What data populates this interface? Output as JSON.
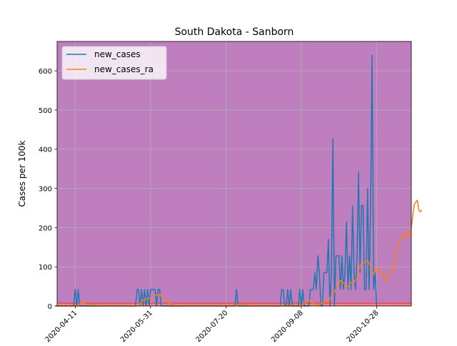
{
  "chart_data": {
    "type": "line",
    "title": "South Dakota - Sanborn",
    "xlabel": "",
    "ylabel": "Cases per 100k",
    "x_start": "2020-03-29",
    "x_end": "2020-11-17",
    "xlim": [
      "2020-03-30",
      "2020-11-20"
    ],
    "ylim": [
      0,
      675
    ],
    "x_ticks": [
      "2020-04-11",
      "2020-05-31",
      "2020-07-20",
      "2020-09-08",
      "2020-10-28"
    ],
    "x_tick_labels": [
      "2020-04-11",
      "2020-05-31",
      "2020-07-20",
      "2020-09-08",
      "2020-10-28"
    ],
    "y_ticks": [
      0,
      100,
      200,
      300,
      400,
      500,
      600
    ],
    "y_tick_labels": [
      "0",
      "100",
      "200",
      "300",
      "400",
      "500",
      "600"
    ],
    "grid": true,
    "legend_position": "upper-left",
    "background_color": "#bf7fbf",
    "baseline_band": {
      "low": 0,
      "high": 7,
      "fill_color": "#ff8080",
      "line_color": "#e03030"
    },
    "series": [
      {
        "name": "new_cases",
        "color": "#1f77b4",
        "values": [
          0,
          0,
          0,
          0,
          0,
          0,
          0,
          0,
          0,
          0,
          0,
          0,
          0,
          42,
          0,
          42,
          0,
          0,
          0,
          0,
          0,
          0,
          0,
          0,
          0,
          0,
          0,
          0,
          0,
          0,
          0,
          0,
          0,
          0,
          0,
          0,
          0,
          0,
          0,
          0,
          0,
          0,
          0,
          0,
          0,
          0,
          0,
          0,
          0,
          0,
          0,
          0,
          0,
          0,
          42,
          42,
          0,
          42,
          0,
          42,
          0,
          42,
          0,
          42,
          42,
          42,
          42,
          0,
          42,
          42,
          0,
          0,
          0,
          0,
          0,
          0,
          0,
          0,
          0,
          0,
          0,
          0,
          0,
          0,
          0,
          0,
          0,
          0,
          0,
          0,
          0,
          0,
          0,
          0,
          0,
          0,
          0,
          0,
          0,
          0,
          0,
          0,
          0,
          0,
          0,
          0,
          0,
          0,
          0,
          0,
          0,
          0,
          0,
          0,
          0,
          0,
          0,
          0,
          0,
          0,
          42,
          0,
          0,
          0,
          0,
          0,
          0,
          0,
          0,
          0,
          0,
          0,
          0,
          0,
          0,
          0,
          0,
          0,
          0,
          0,
          0,
          0,
          0,
          0,
          0,
          0,
          0,
          0,
          0,
          0,
          42,
          42,
          0,
          0,
          42,
          0,
          42,
          0,
          0,
          0,
          0,
          0,
          42,
          0,
          42,
          0,
          0,
          0,
          0,
          42,
          42,
          42,
          85,
          42,
          128,
          85,
          0,
          0,
          85,
          85,
          85,
          170,
          0,
          85,
          427,
          0,
          128,
          128,
          128,
          42,
          128,
          42,
          85,
          214,
          42,
          128,
          42,
          256,
          85,
          42,
          128,
          342,
          85,
          256,
          256,
          42,
          42,
          300,
          42,
          256,
          640,
          42,
          85,
          0
        ]
      },
      {
        "name": "new_cases_ra",
        "color": "#ff7f0e",
        "values": [
          0,
          0,
          0,
          0,
          0,
          0,
          0,
          0,
          0,
          0,
          0,
          0,
          0,
          0,
          0,
          0,
          5,
          7,
          10,
          7,
          5,
          5,
          4,
          4,
          3,
          3,
          2,
          2,
          1,
          1,
          0,
          0,
          0,
          0,
          0,
          0,
          0,
          0,
          0,
          0,
          0,
          0,
          0,
          0,
          0,
          0,
          0,
          0,
          0,
          0,
          0,
          0,
          0,
          0,
          0,
          0,
          5,
          10,
          15,
          17,
          18,
          19,
          20,
          20,
          22,
          25,
          28,
          27,
          28,
          29,
          26,
          24,
          22,
          18,
          14,
          10,
          6,
          4,
          2,
          0,
          0,
          0,
          0,
          0,
          0,
          0,
          0,
          0,
          0,
          0,
          0,
          0,
          0,
          0,
          0,
          0,
          0,
          0,
          0,
          0,
          0,
          0,
          0,
          0,
          0,
          0,
          0,
          0,
          0,
          0,
          0,
          0,
          0,
          0,
          0,
          0,
          0,
          0,
          0,
          0,
          0,
          4,
          5,
          5,
          5,
          5,
          4,
          3,
          2,
          0,
          0,
          0,
          0,
          0,
          0,
          0,
          0,
          0,
          0,
          0,
          0,
          0,
          0,
          0,
          0,
          0,
          0,
          0,
          0,
          0,
          0,
          0,
          0,
          0,
          0,
          0,
          0,
          0,
          0,
          0,
          0,
          0,
          0,
          0,
          5,
          8,
          10,
          15,
          15,
          12,
          10,
          6,
          6,
          4,
          2,
          2,
          6,
          8,
          10,
          10,
          10,
          8,
          20,
          24,
          32,
          35,
          45,
          50,
          60,
          65,
          60,
          60,
          55,
          50,
          50,
          55,
          60,
          60,
          60,
          65,
          70,
          90,
          100,
          110,
          110,
          112,
          115,
          115,
          110,
          100,
          90,
          80,
          90,
          95,
          95,
          90,
          85,
          80,
          75,
          65,
          65,
          85,
          88,
          85,
          90,
          100,
          150,
          160,
          165,
          175,
          180,
          175,
          185,
          190,
          175,
          180,
          200,
          230,
          260,
          265,
          270,
          245,
          240,
          245
        ]
      }
    ]
  }
}
